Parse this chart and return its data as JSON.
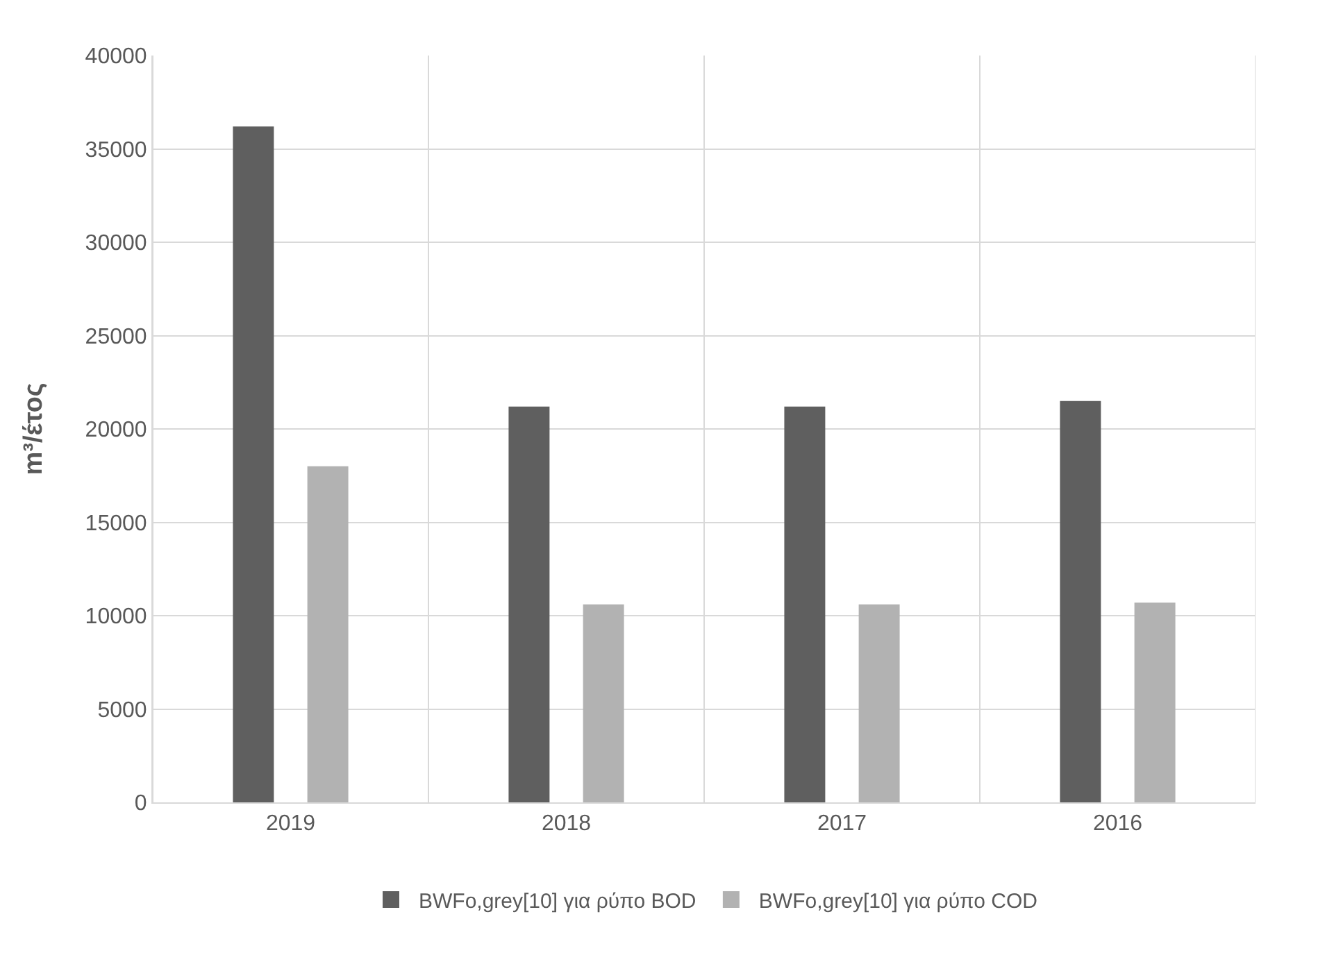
{
  "chart_data": {
    "type": "bar",
    "ylabel": "m³/έτος",
    "categories": [
      "2019",
      "2018",
      "2017",
      "2016"
    ],
    "series": [
      {
        "name": "BWFo,grey[10] για ρύπο BOD",
        "color": "#5f5f5f",
        "values": [
          36200,
          21200,
          21200,
          21500
        ]
      },
      {
        "name": "BWFo,grey[10] για ρύπο COD",
        "color": "#b2b2b2",
        "values": [
          18000,
          10600,
          10600,
          10700
        ]
      }
    ],
    "ylim": [
      0,
      40000
    ],
    "yticks": [
      0,
      5000,
      10000,
      15000,
      20000,
      25000,
      30000,
      35000,
      40000
    ],
    "grid": true,
    "legend": "bottom"
  }
}
